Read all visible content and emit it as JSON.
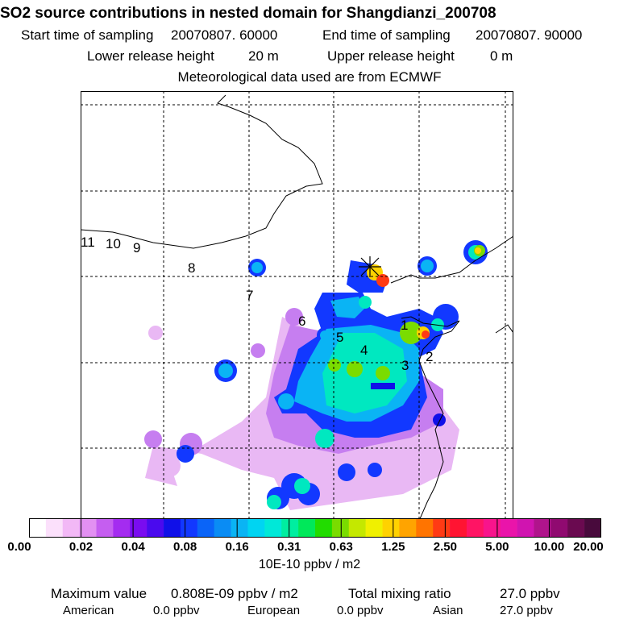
{
  "title": "SO2 source contributions in nested domain for Shangdianzi_200708",
  "sampling": {
    "start_label": "Start time of sampling",
    "start_value": "20070807. 60000",
    "end_label": "End time of sampling",
    "end_value": "20070807. 90000"
  },
  "release": {
    "lower_label": "Lower release height",
    "lower_value": "20 m",
    "upper_label": "Upper release height",
    "upper_value": "0 m"
  },
  "met_source": "Meteorological data used are from ECMWF",
  "trajectory_labels": [
    "1",
    "2",
    "3",
    "4",
    "5",
    "6",
    "7",
    "8",
    "9",
    "10",
    "11"
  ],
  "receptor_marker": "asterisk",
  "legend": {
    "ticks": [
      "0.00",
      "0.02",
      "0.04",
      "0.08",
      "0.16",
      "0.31",
      "0.63",
      "1.25",
      "2.50",
      "5.00",
      "10.00",
      "20.00"
    ],
    "colors": [
      "#ffffff",
      "#fbe0fb",
      "#f2b8f6",
      "#e290f2",
      "#c55ef0",
      "#a42cf0",
      "#7a0cf0",
      "#4a0aee",
      "#1010e8",
      "#1238ff",
      "#0a64f8",
      "#0a8cf4",
      "#0ab4f4",
      "#00d4f2",
      "#00e8d8",
      "#00eea0",
      "#00e85a",
      "#22dc00",
      "#7adc00",
      "#c4e800",
      "#f0f000",
      "#ffd200",
      "#ffa400",
      "#ff7400",
      "#ff3a14",
      "#ff1432",
      "#ff1464",
      "#f8148c",
      "#ea14aa",
      "#d014b0",
      "#b0148c",
      "#900a70",
      "#6a0a50",
      "#480a3c"
    ],
    "units": "10E-10 ppbv / m2"
  },
  "summary": {
    "max_label": "Maximum value",
    "max_value": "0.808E-09 ppbv / m2",
    "total_label": "Total mixing ratio",
    "total_value": "27.0 ppbv",
    "american_label": "American",
    "american_value": "0.0 ppbv",
    "european_label": "European",
    "european_value": "0.0 ppbv",
    "asian_label": "Asian",
    "asian_value": "27.0 ppbv"
  }
}
